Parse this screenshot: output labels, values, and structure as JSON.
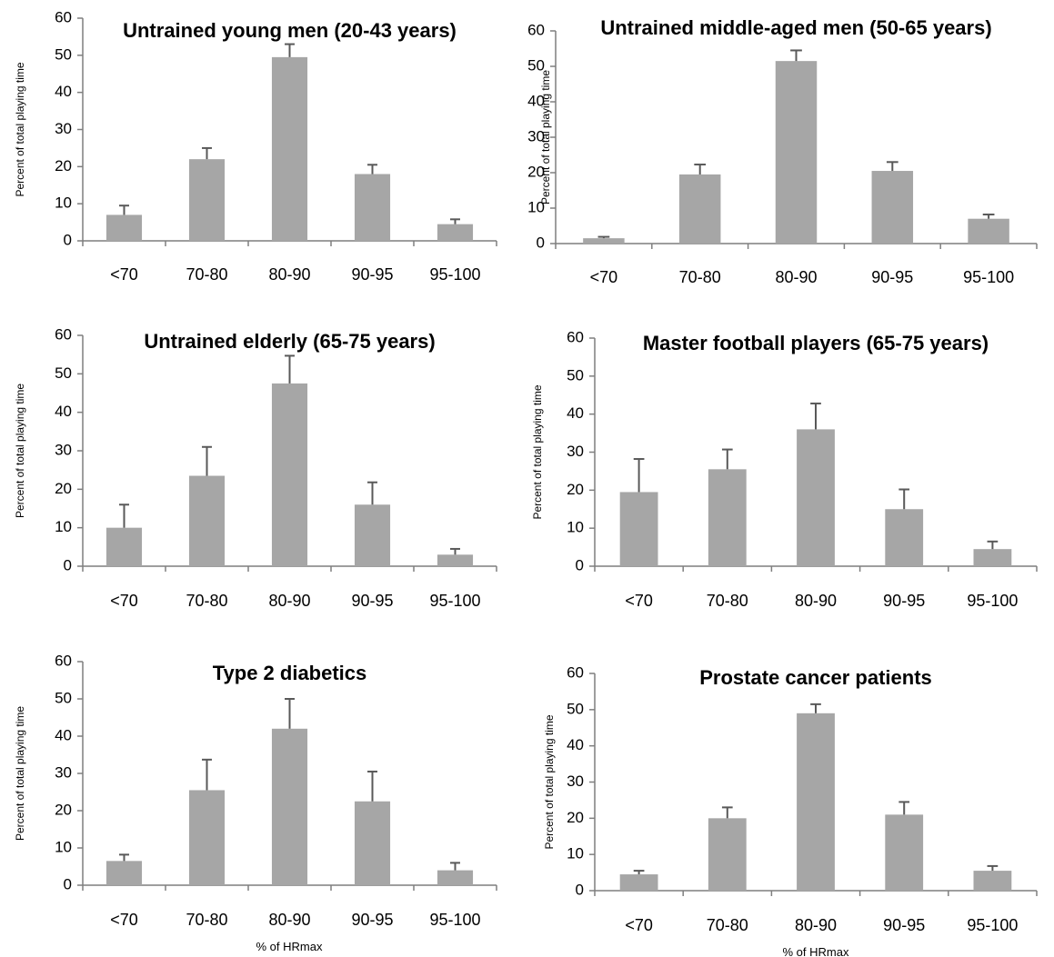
{
  "figure": {
    "background": "#ffffff",
    "bar_color": "#a6a6a6",
    "error_color": "#595959",
    "axis_color": "#7f7f7f",
    "xlabel": "% of HRmax"
  },
  "chart_data": [
    {
      "type": "bar",
      "title": "Untrained young men (20-43 years)",
      "xlabel": "",
      "ylabel": "Percent of total playing time",
      "categories": [
        "<70",
        "70-80",
        "80-90",
        "90-95",
        "95-100"
      ],
      "values": [
        7,
        22,
        49.5,
        18,
        4.5
      ],
      "errors": [
        2.5,
        3,
        3.5,
        2.5,
        1.3
      ],
      "ylim": [
        0,
        60
      ],
      "yticks": [
        "0",
        "10",
        "20",
        "30",
        "40",
        "50",
        "60"
      ],
      "grid": false,
      "legend": "none"
    },
    {
      "type": "bar",
      "title": "Untrained middle-aged men (50-65 years)",
      "xlabel": "",
      "ylabel": "Percent of total playing time",
      "categories": [
        "<70",
        "70-80",
        "80-90",
        "90-95",
        "95-100"
      ],
      "values": [
        1.5,
        19.5,
        51.5,
        20.5,
        7
      ],
      "errors": [
        0.4,
        2.8,
        3,
        2.5,
        1.2
      ],
      "ylim": [
        0,
        60
      ],
      "yticks": [
        "0",
        "10",
        "20",
        "30",
        "40",
        "50",
        "60"
      ],
      "grid": false,
      "legend": "none"
    },
    {
      "type": "bar",
      "title": "Untrained elderly (65-75 years)",
      "xlabel": "",
      "ylabel": "Percent of total playing time",
      "categories": [
        "<70",
        "70-80",
        "80-90",
        "90-95",
        "95-100"
      ],
      "values": [
        10,
        23.5,
        47.5,
        16,
        3
      ],
      "errors": [
        6,
        7.5,
        7.2,
        5.8,
        1.5
      ],
      "ylim": [
        0,
        60
      ],
      "yticks": [
        "0",
        "10",
        "20",
        "30",
        "40",
        "50",
        "60"
      ],
      "grid": false,
      "legend": "none"
    },
    {
      "type": "bar",
      "title": "Master football players (65-75 years)",
      "xlabel": "",
      "ylabel": "Percent of total playing time",
      "categories": [
        "<70",
        "70-80",
        "80-90",
        "90-95",
        "95-100"
      ],
      "values": [
        19.5,
        25.5,
        36,
        15,
        4.5
      ],
      "errors": [
        8.7,
        5.2,
        6.8,
        5.2,
        2
      ],
      "ylim": [
        0,
        60
      ],
      "yticks": [
        "0",
        "10",
        "20",
        "30",
        "40",
        "50",
        "60"
      ],
      "grid": false,
      "legend": "none"
    },
    {
      "type": "bar",
      "title": "Type 2 diabetics",
      "xlabel": "",
      "ylabel": "Percent of total playing time",
      "categories": [
        "<70",
        "70-80",
        "80-90",
        "90-95",
        "95-100"
      ],
      "values": [
        6.5,
        25.5,
        42,
        22.5,
        4
      ],
      "errors": [
        1.7,
        8.2,
        8,
        8,
        2
      ],
      "ylim": [
        0,
        60
      ],
      "yticks": [
        "0",
        "10",
        "20",
        "30",
        "40",
        "50",
        "60"
      ],
      "grid": false,
      "legend": "none"
    },
    {
      "type": "bar",
      "title": "Prostate cancer patients",
      "xlabel": "",
      "ylabel": "Percent of total playing time",
      "categories": [
        "<70",
        "70-80",
        "80-90",
        "90-95",
        "95-100"
      ],
      "values": [
        4.5,
        20,
        49,
        21,
        5.5
      ],
      "errors": [
        1,
        3,
        2.5,
        3.5,
        1.3
      ],
      "ylim": [
        0,
        60
      ],
      "yticks": [
        "0",
        "10",
        "20",
        "30",
        "40",
        "50",
        "60"
      ],
      "grid": false,
      "legend": "none"
    }
  ]
}
